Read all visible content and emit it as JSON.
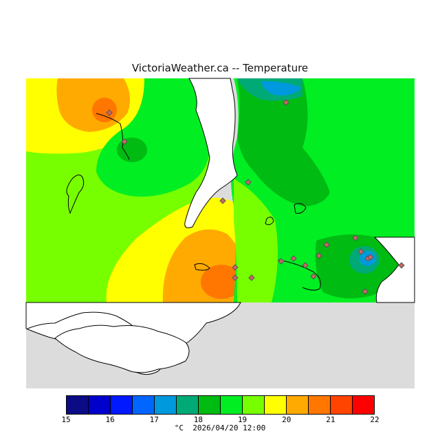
{
  "title": "VictoriaWeather.ca -- Temperature",
  "legend": {
    "colors": [
      "#0b0b86",
      "#0000cc",
      "#0019ff",
      "#0066ff",
      "#0099dd",
      "#00aa77",
      "#00bb11",
      "#00ee22",
      "#77ff00",
      "#ffff00",
      "#ffaa00",
      "#ff7700",
      "#ff4400",
      "#ff0000"
    ],
    "tick_values": [
      "15",
      "16",
      "17",
      "18",
      "19",
      "20",
      "21",
      "22"
    ],
    "unit": "°C",
    "timestamp": "2026/04/20 12:00"
  },
  "colors": {
    "land_outside": "#dcdcdc",
    "water": "#ffffff",
    "c18_19": "#00bb11",
    "c19_19_5": "#00ee22",
    "c19_5_20": "#77ff00",
    "c20_20_5": "#ffff00",
    "c20_5_21": "#ffaa00",
    "c21_21_5": "#ff7700",
    "c17_5_18": "#0099dd",
    "c17_17_5": "#0066ff",
    "station": "#cc6666"
  },
  "stations_count": 20
}
